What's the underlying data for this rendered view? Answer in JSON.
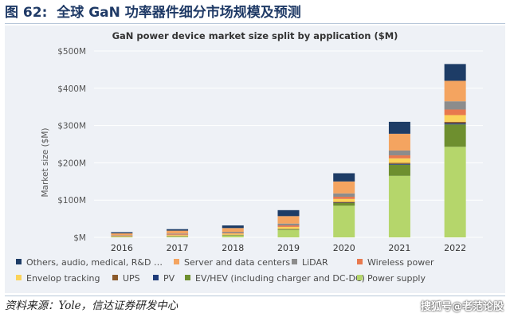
{
  "figure": {
    "label": "图 62:",
    "title": "全球 GaN 功率器件细分市场规模及预测"
  },
  "source": "资料来源：Yole，信达证券研发中心",
  "watermark": "搜狐号@老范论股",
  "chart_data": {
    "type": "bar",
    "stacked": true,
    "title": "GaN power device market size split by application ($M)",
    "xlabel": "",
    "ylabel": "Market size ($M)",
    "ylim": [
      0,
      500
    ],
    "yticks": [
      0,
      100,
      200,
      300,
      400,
      500
    ],
    "ytick_labels": [
      "$M",
      "$100M",
      "$200M",
      "$300M",
      "$400M",
      "$500M"
    ],
    "grid": true,
    "legend_position": "bottom",
    "categories": [
      "2016",
      "2017",
      "2018",
      "2019",
      "2020",
      "2021",
      "2022"
    ],
    "series": [
      {
        "name": "Power supply",
        "color": "#b5d66b",
        "values": [
          2,
          3,
          5,
          20,
          85,
          165,
          243
        ]
      },
      {
        "name": "EV/HEV (including charger and DC-DC)",
        "color": "#6e8f2f",
        "values": [
          0,
          0,
          1,
          2,
          7,
          30,
          60
        ]
      },
      {
        "name": "PV",
        "color": "#1f3c7a",
        "values": [
          0,
          0,
          0,
          0,
          1,
          2,
          3
        ]
      },
      {
        "name": "UPS",
        "color": "#8b5a2b",
        "values": [
          1,
          1,
          1,
          1,
          2,
          3,
          4
        ]
      },
      {
        "name": "Envelop tracking",
        "color": "#fbd35a",
        "values": [
          1,
          2,
          3,
          5,
          8,
          12,
          18
        ]
      },
      {
        "name": "Wireless power",
        "color": "#e8794e",
        "values": [
          1,
          2,
          2,
          4,
          6,
          8,
          15
        ]
      },
      {
        "name": "LiDAR",
        "color": "#8c8c8c",
        "values": [
          1,
          2,
          3,
          5,
          9,
          13,
          22
        ]
      },
      {
        "name": "Server and data centers",
        "color": "#f4a460",
        "values": [
          5,
          8,
          10,
          20,
          32,
          45,
          55
        ]
      },
      {
        "name": "Others, audio, medical, R&D …",
        "color": "#1d3c66",
        "values": [
          3,
          4,
          7,
          16,
          22,
          32,
          45
        ]
      }
    ]
  },
  "legend": [
    {
      "label": "Others, audio, medical, R&D …",
      "color": "#1d3c66"
    },
    {
      "label": "Server and data centers",
      "color": "#f4a460"
    },
    {
      "label": "LiDAR",
      "color": "#8c8c8c"
    },
    {
      "label": "Wireless power",
      "color": "#e8794e"
    },
    {
      "label": "Envelop tracking",
      "color": "#fbd35a"
    },
    {
      "label": "UPS",
      "color": "#8b5a2b"
    },
    {
      "label": "PV",
      "color": "#1f3c7a"
    },
    {
      "label": "EV/HEV (including charger and DC-DC)",
      "color": "#6e8f2f"
    },
    {
      "label": "Power supply",
      "color": "#b5d66b"
    }
  ]
}
